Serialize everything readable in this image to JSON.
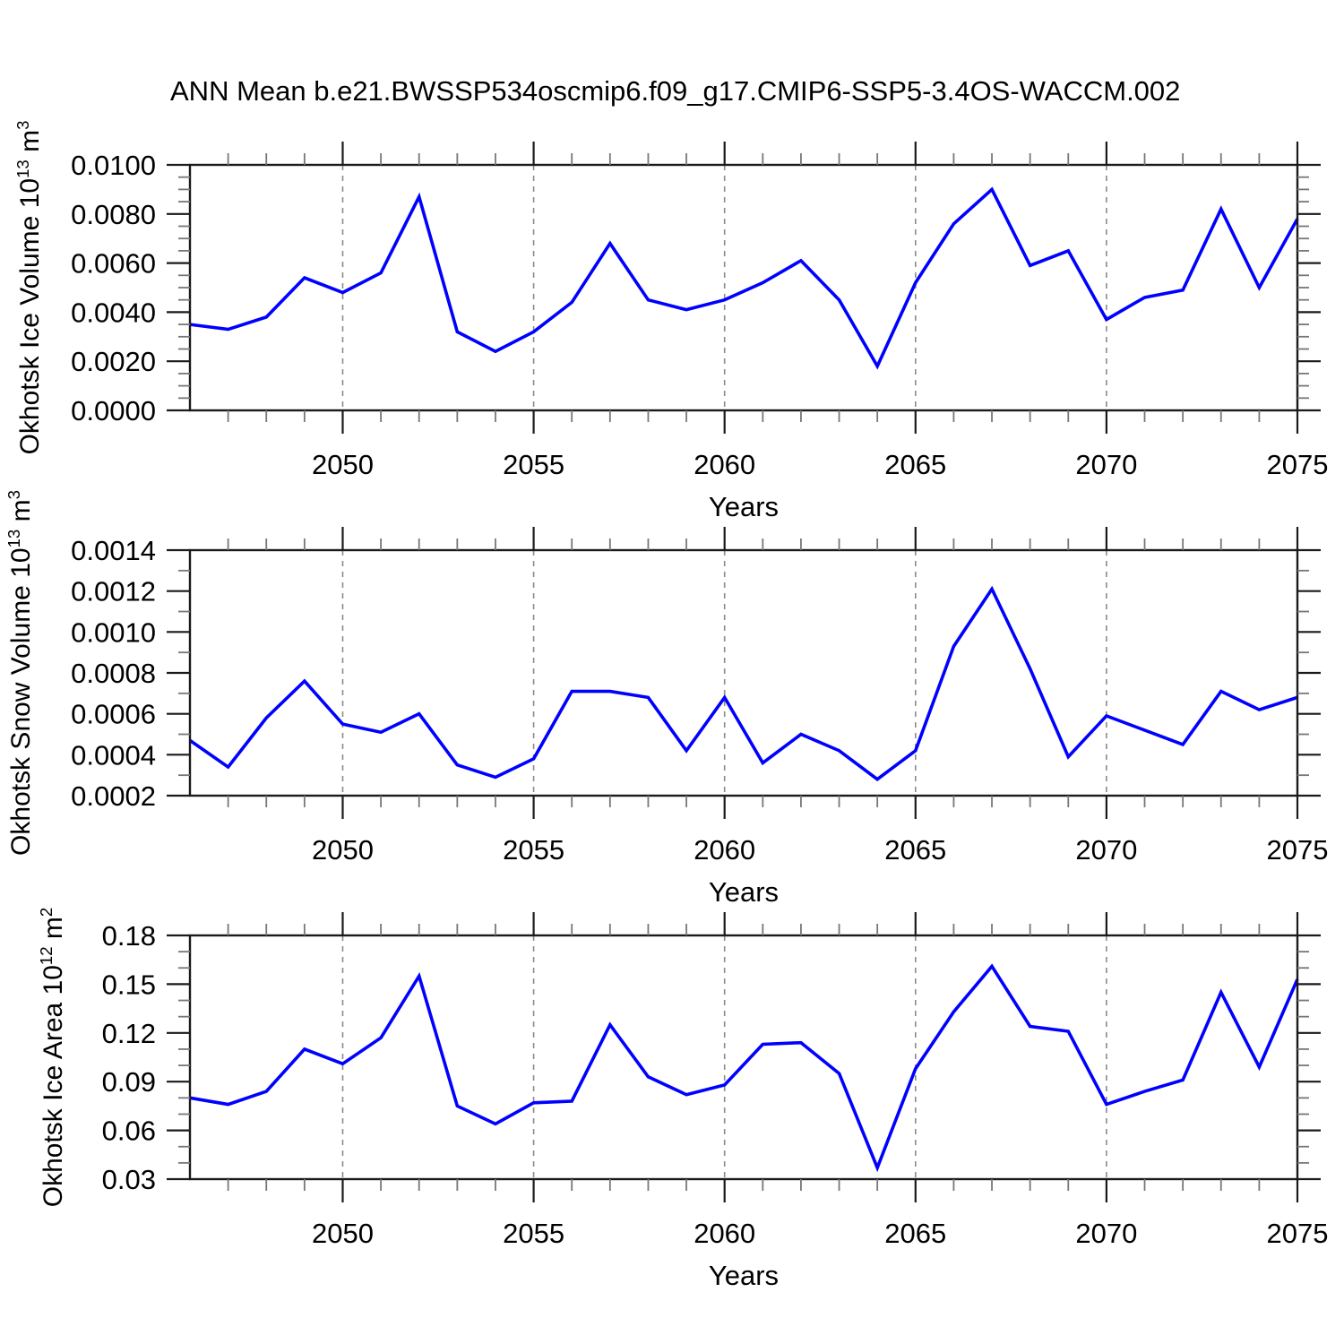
{
  "title": "ANN Mean b.e21.BWSSP534oscmip6.f09_g17.CMIP6-SSP5-3.4OS-WACCM.002",
  "colors": {
    "line": "#0000ff",
    "axis": "#1a1a1a",
    "minor_tick": "#777777",
    "grid": "#8a8a8a",
    "background": "#ffffff",
    "text": "#000000"
  },
  "chart_data": [
    {
      "name": "okhotsk-ice-volume",
      "type": "line",
      "axis_title": {
        "text": "Okhotsk Ice Volume 10",
        "exp": "13",
        "unit": " m",
        "unit_exp": "3"
      },
      "xlabel": "Years",
      "x": [
        2046,
        2047,
        2048,
        2049,
        2050,
        2051,
        2052,
        2053,
        2054,
        2055,
        2056,
        2057,
        2058,
        2059,
        2060,
        2061,
        2062,
        2063,
        2064,
        2065,
        2066,
        2067,
        2068,
        2069,
        2070,
        2071,
        2072,
        2073,
        2074,
        2075
      ],
      "values": [
        0.0035,
        0.0033,
        0.0038,
        0.0054,
        0.0048,
        0.0056,
        0.0087,
        0.0032,
        0.0024,
        0.0032,
        0.0044,
        0.0068,
        0.0045,
        0.0041,
        0.0045,
        0.0052,
        0.0061,
        0.0045,
        0.0018,
        0.0052,
        0.0076,
        0.009,
        0.0059,
        0.0065,
        0.0037,
        0.0046,
        0.0049,
        0.0082,
        0.005,
        0.0078
      ],
      "xlim": [
        2046,
        2075
      ],
      "ylim": [
        0.0,
        0.01
      ],
      "yticks": [
        {
          "v": 0.0,
          "label": "0.0000"
        },
        {
          "v": 0.002,
          "label": "0.0020"
        },
        {
          "v": 0.004,
          "label": "0.0040"
        },
        {
          "v": 0.006,
          "label": "0.0060"
        },
        {
          "v": 0.008,
          "label": "0.0080"
        },
        {
          "v": 0.01,
          "label": "0.0100"
        }
      ],
      "y_minor_step": 0.0005,
      "xticks": [
        {
          "v": 2050,
          "label": "2050"
        },
        {
          "v": 2055,
          "label": "2055"
        },
        {
          "v": 2060,
          "label": "2060"
        },
        {
          "v": 2065,
          "label": "2065"
        },
        {
          "v": 2070,
          "label": "2070"
        },
        {
          "v": 2075,
          "label": "2075"
        }
      ],
      "x_minor_step": 1,
      "gridline_years": [
        2050,
        2055,
        2060,
        2065,
        2070
      ],
      "grid": true,
      "legend": "none"
    },
    {
      "name": "okhotsk-snow-volume",
      "type": "line",
      "axis_title": {
        "text": "Okhotsk Snow Volume 10",
        "exp": "13",
        "unit": " m",
        "unit_exp": "3"
      },
      "xlabel": "Years",
      "x": [
        2046,
        2047,
        2048,
        2049,
        2050,
        2051,
        2052,
        2053,
        2054,
        2055,
        2056,
        2057,
        2058,
        2059,
        2060,
        2061,
        2062,
        2063,
        2064,
        2065,
        2066,
        2067,
        2068,
        2069,
        2070,
        2071,
        2072,
        2073,
        2074,
        2075
      ],
      "values": [
        0.00047,
        0.00034,
        0.00058,
        0.00076,
        0.00055,
        0.00051,
        0.0006,
        0.00035,
        0.00029,
        0.00038,
        0.00071,
        0.00071,
        0.00068,
        0.00042,
        0.00068,
        0.00036,
        0.0005,
        0.00042,
        0.00028,
        0.00042,
        0.00093,
        0.00121,
        0.00082,
        0.00039,
        0.00059,
        0.00052,
        0.00045,
        0.00071,
        0.00062,
        0.00068
      ],
      "xlim": [
        2046,
        2075
      ],
      "ylim": [
        0.0002,
        0.0014
      ],
      "yticks": [
        {
          "v": 0.0002,
          "label": "0.0002"
        },
        {
          "v": 0.0004,
          "label": "0.0004"
        },
        {
          "v": 0.0006,
          "label": "0.0006"
        },
        {
          "v": 0.0008,
          "label": "0.0008"
        },
        {
          "v": 0.001,
          "label": "0.0010"
        },
        {
          "v": 0.0012,
          "label": "0.0012"
        },
        {
          "v": 0.0014,
          "label": "0.0014"
        }
      ],
      "y_minor_step": 0.0001,
      "xticks": [
        {
          "v": 2050,
          "label": "2050"
        },
        {
          "v": 2055,
          "label": "2055"
        },
        {
          "v": 2060,
          "label": "2060"
        },
        {
          "v": 2065,
          "label": "2065"
        },
        {
          "v": 2070,
          "label": "2070"
        },
        {
          "v": 2075,
          "label": "2075"
        }
      ],
      "x_minor_step": 1,
      "gridline_years": [
        2050,
        2055,
        2060,
        2065,
        2070
      ],
      "grid": true,
      "legend": "none"
    },
    {
      "name": "okhotsk-ice-area",
      "type": "line",
      "axis_title": {
        "text": "Okhotsk Ice Area 10",
        "exp": "12",
        "unit": " m",
        "unit_exp": "2"
      },
      "xlabel": "Years",
      "x": [
        2046,
        2047,
        2048,
        2049,
        2050,
        2051,
        2052,
        2053,
        2054,
        2055,
        2056,
        2057,
        2058,
        2059,
        2060,
        2061,
        2062,
        2063,
        2064,
        2065,
        2066,
        2067,
        2068,
        2069,
        2070,
        2071,
        2072,
        2073,
        2074,
        2075
      ],
      "values": [
        0.08,
        0.076,
        0.084,
        0.11,
        0.101,
        0.117,
        0.155,
        0.075,
        0.064,
        0.077,
        0.078,
        0.125,
        0.093,
        0.082,
        0.088,
        0.113,
        0.114,
        0.095,
        0.037,
        0.098,
        0.133,
        0.161,
        0.124,
        0.121,
        0.076,
        0.084,
        0.091,
        0.145,
        0.099,
        0.153
      ],
      "xlim": [
        2046,
        2075
      ],
      "ylim": [
        0.03,
        0.18
      ],
      "yticks": [
        {
          "v": 0.03,
          "label": "0.03"
        },
        {
          "v": 0.06,
          "label": "0.06"
        },
        {
          "v": 0.09,
          "label": "0.09"
        },
        {
          "v": 0.12,
          "label": "0.12"
        },
        {
          "v": 0.15,
          "label": "0.15"
        },
        {
          "v": 0.18,
          "label": "0.18"
        }
      ],
      "y_minor_step": 0.01,
      "xticks": [
        {
          "v": 2050,
          "label": "2050"
        },
        {
          "v": 2055,
          "label": "2055"
        },
        {
          "v": 2060,
          "label": "2060"
        },
        {
          "v": 2065,
          "label": "2065"
        },
        {
          "v": 2070,
          "label": "2070"
        },
        {
          "v": 2075,
          "label": "2075"
        }
      ],
      "x_minor_step": 1,
      "gridline_years": [
        2050,
        2055,
        2060,
        2065,
        2070
      ],
      "grid": true,
      "legend": "none"
    }
  ]
}
